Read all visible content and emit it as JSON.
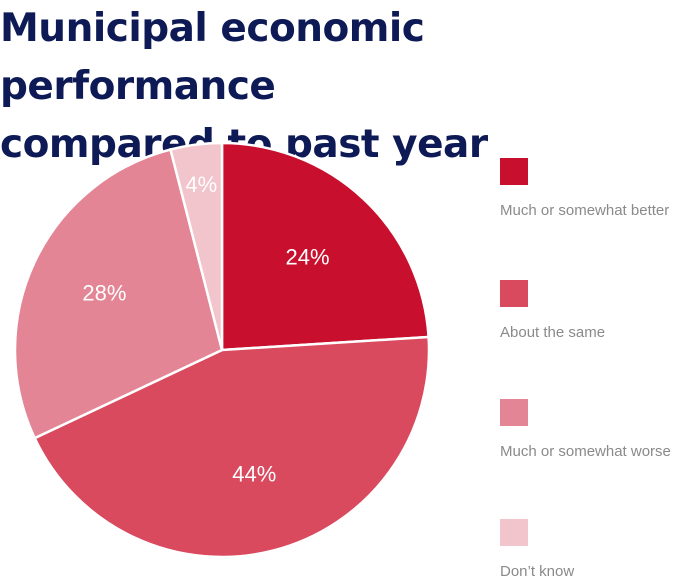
{
  "title": {
    "line1": "Municipal economic performance",
    "line2": "compared to past year"
  },
  "colors": {
    "title": "#0d1a55",
    "much_better": "#c8102e",
    "about_same": "#d94a5e",
    "much_worse": "#e38594",
    "dont_know": "#f2c4cb",
    "slice_label": "#ffffff",
    "legend_text": "#8a8a8a"
  },
  "chart_data": {
    "type": "pie",
    "title": "Municipal economic performance compared to past year",
    "start_angle_deg": 0,
    "direction": "clockwise",
    "slices": [
      {
        "label": "Much or somewhat better",
        "value": 24,
        "display": "24%",
        "color": "#c8102e"
      },
      {
        "label": "About the same",
        "value": 44,
        "display": "44%",
        "color": "#d94a5e"
      },
      {
        "label": "Much or somewhat worse",
        "value": 28,
        "display": "28%",
        "color": "#e38594"
      },
      {
        "label": "Don’t know",
        "value": 4,
        "display": "4%",
        "color": "#f2c4cb"
      }
    ],
    "legend_position": "right"
  }
}
